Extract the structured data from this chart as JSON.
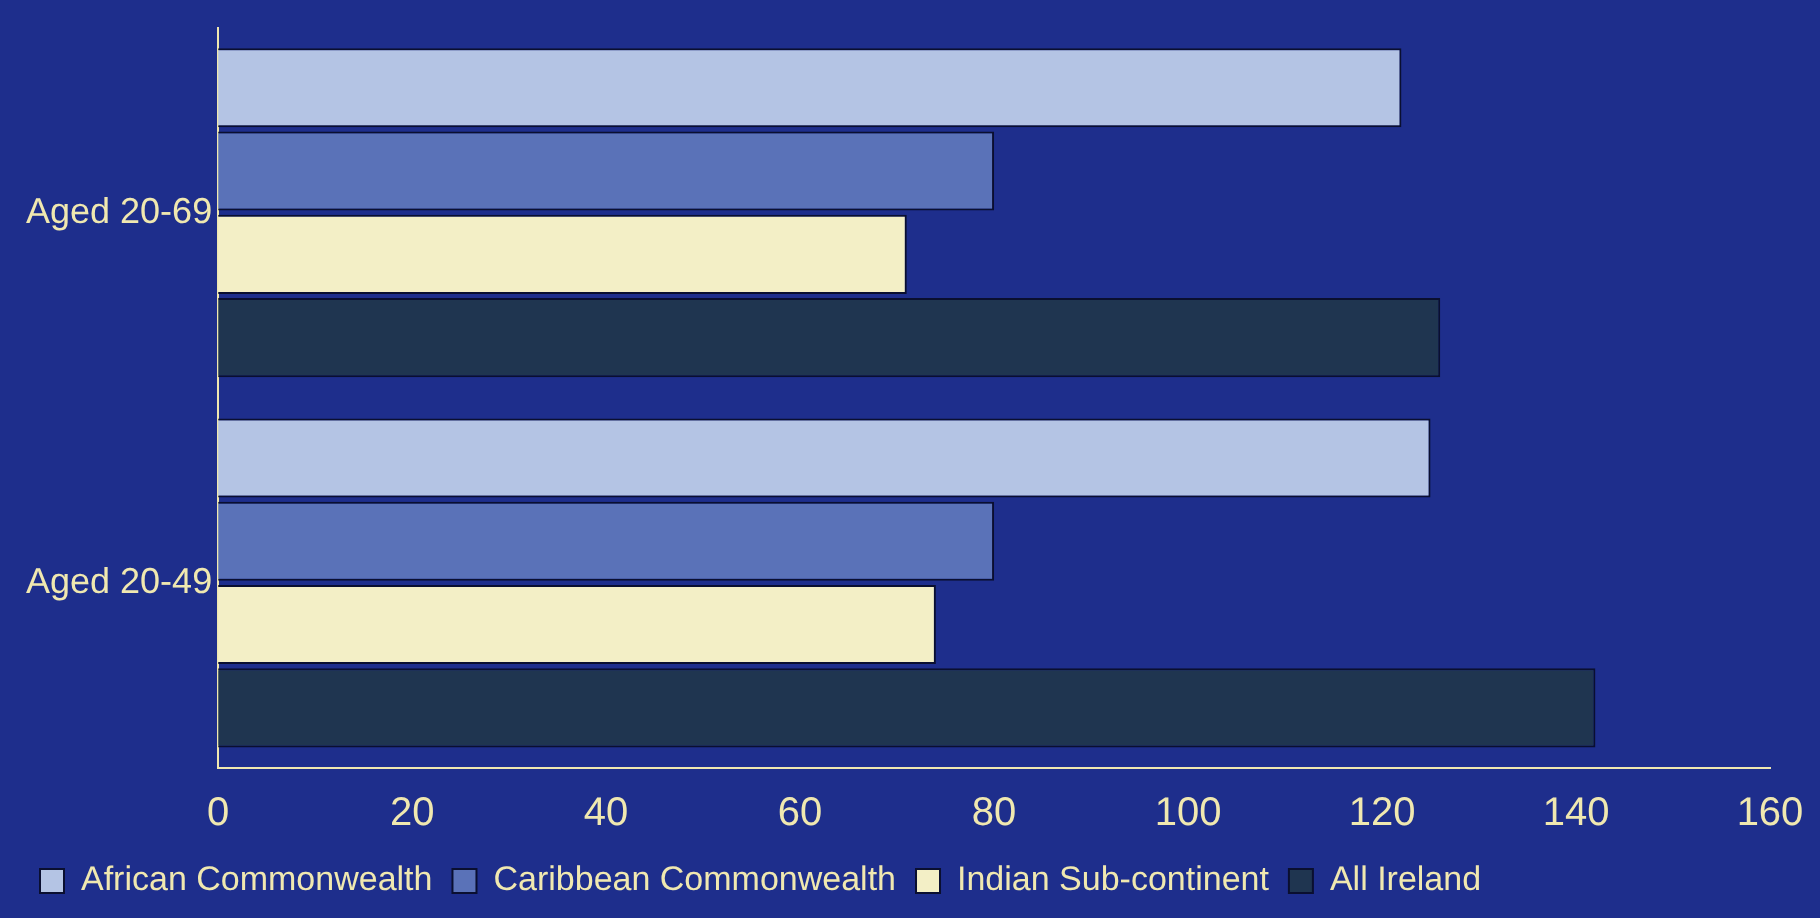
{
  "chart_data": {
    "type": "bar",
    "orientation": "horizontal",
    "categories": [
      "Aged 20-69",
      "Aged 20-49"
    ],
    "series": [
      {
        "name": "African Commonwealth",
        "color": "#b4c4e4",
        "values": [
          122,
          125
        ]
      },
      {
        "name": "Caribbean Commonwealth",
        "color": "#5a72b8",
        "values": [
          80,
          80
        ]
      },
      {
        "name": "Indian Sub-continent",
        "color": "#f3efc6",
        "values": [
          71,
          74
        ]
      },
      {
        "name": "All Ireland",
        "color": "#1f3550",
        "values": [
          126,
          142
        ]
      }
    ],
    "xlim": [
      0,
      160
    ],
    "xticks": [
      0,
      20,
      40,
      60,
      80,
      100,
      120,
      140,
      160
    ],
    "grid": false,
    "legend": "bottom"
  }
}
